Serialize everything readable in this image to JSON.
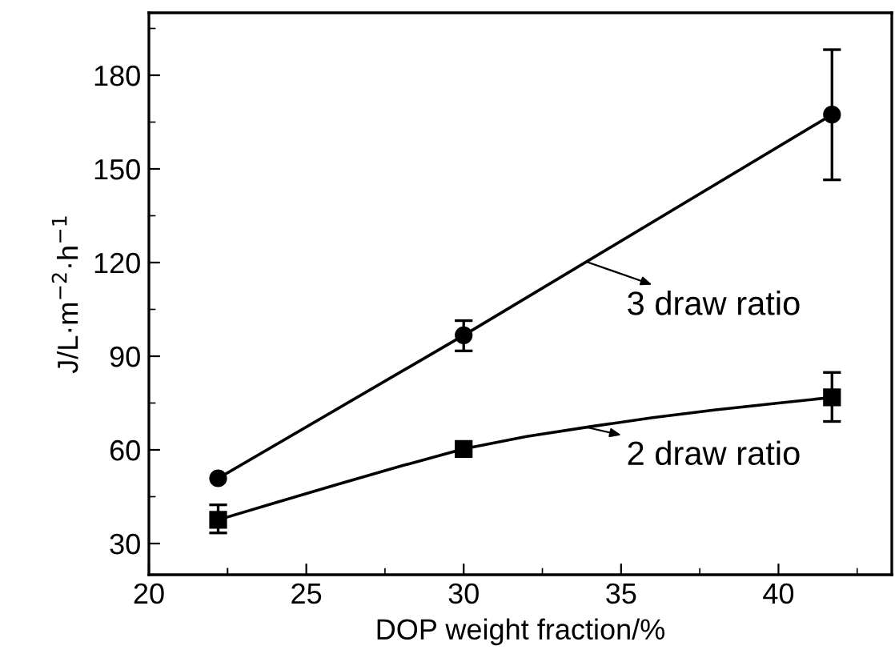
{
  "chart_data": {
    "type": "scatter",
    "xlabel": "DOP weight fraction/%",
    "ylabel": "J/L·m$^{−2}$·h$^{−1}$",
    "xlim": [
      20,
      43.6
    ],
    "ylim": [
      20,
      200
    ],
    "xticks": [
      20,
      25,
      30,
      35,
      40
    ],
    "yticks": [
      30,
      60,
      90,
      120,
      150,
      180
    ],
    "grid": false,
    "legend": "right",
    "line_style": "solid",
    "series": [
      {
        "color": "#000000",
        "marker": "circle",
        "x": [
          22.2,
          30,
          41.7
        ],
        "values": [
          50.9,
          96.7,
          167.4
        ],
        "errors": [
          null,
          [
            91.7,
            101.4
          ],
          [
            146.5,
            188.2
          ]
        ]
      },
      {
        "color": "#000000",
        "marker": "square",
        "x": [
          22.2,
          30,
          41.7
        ],
        "values": [
          37.6,
          60.3,
          76.8
        ],
        "errors": [
          [
            33.4,
            42.4
          ],
          null,
          [
            69.1,
            84.8
          ]
        ]
      },
      {
        "type": "line",
        "name": "3 draw ratio",
        "color": "#000000",
        "x": [
          22.2,
          30,
          41.7
        ],
        "values": [
          50.9,
          96.7,
          167.4
        ]
      },
      {
        "type": "line",
        "name": "2 draw ratio",
        "color": "#000000",
        "x": [
          22.2,
          24,
          26,
          28,
          30,
          32,
          34,
          36,
          38,
          40,
          41.7
        ],
        "values": [
          37.6,
          43,
          49,
          54.8,
          60.3,
          64.3,
          67.4,
          70.3,
          72.8,
          75,
          76.8
        ]
      }
    ]
  }
}
